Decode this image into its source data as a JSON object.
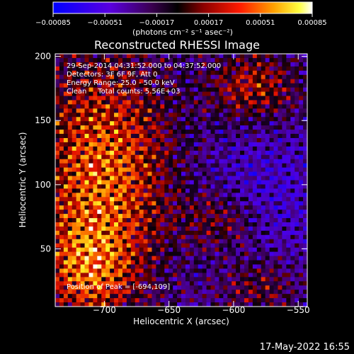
{
  "chart_data": {
    "type": "heatmap",
    "title": "Reconstructed RHESSI Image",
    "xlabel": "Heliocentric X (arcsec)",
    "ylabel": "Heliocentric Y (arcsec)",
    "xlim": [
      -738,
      -543
    ],
    "ylim": [
      5,
      202
    ],
    "x_ticks": [
      -700,
      -650,
      -600,
      -550
    ],
    "x_tick_labels": [
      "−700",
      "−650",
      "−600",
      "−550"
    ],
    "y_ticks": [
      50,
      100,
      150,
      200
    ],
    "y_tick_labels": [
      "50",
      "100",
      "150",
      "200"
    ],
    "colorbar": {
      "min": -0.00085,
      "max": 0.00085,
      "ticks": [
        -0.00085,
        -0.00051,
        -0.00017,
        0.00017,
        0.00051,
        0.00085
      ],
      "tick_labels": [
        "−0.00085",
        "−0.00051",
        "−0.00017",
        "0.00017",
        "0.00051",
        "0.00085"
      ],
      "unit_text": "(photons cm⁻² s⁻¹ asec⁻²)",
      "colors": [
        "#0000ff",
        "#6a00d8",
        "#000000",
        "#8b0000",
        "#ff0000",
        "#ffa500",
        "#ffff00",
        "#ffffff"
      ]
    },
    "annotations": [
      "29-Sep-2014 04:31:52.000 to 04:37:52.000",
      "Detectors: 3F 6F 9F, Att 0",
      "Energy Range: 25.0 - 50.0 keV",
      "Clean     Total counts: 5.56E+03"
    ],
    "peak_label": "Position of Peak = [-694,109]",
    "peak_position": [
      -694,
      109
    ]
  },
  "footer_date": "17-May-2022 16:55"
}
